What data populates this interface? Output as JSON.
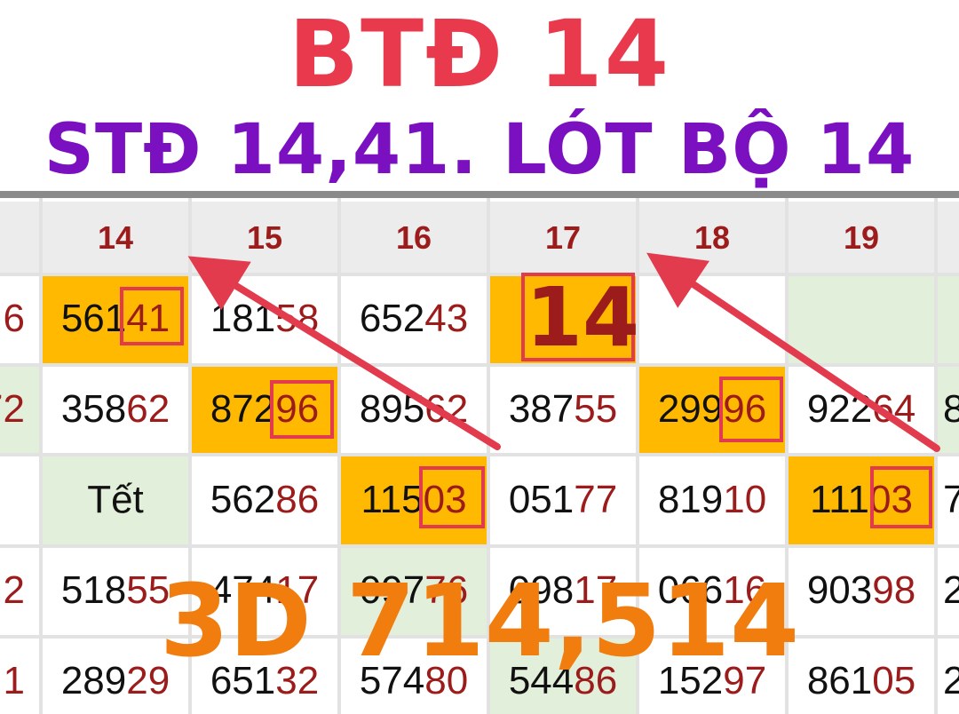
{
  "colors": {
    "title_red": "#e8394d",
    "title_purple": "#7a10c0",
    "digit_red": "#9c1c1c",
    "highlight_orange": "#ffba00",
    "holiday_green": "#e2efda",
    "header_bg": "#ececec",
    "box_red": "#e23b4e",
    "overlay_orange": "#f07d0d"
  },
  "title": {
    "line1": "BTĐ 14",
    "line2": "STĐ 14,41. LÓT BỘ 14"
  },
  "overlay": {
    "big_number": "14",
    "bottom_text": "3D 714,514"
  },
  "table": {
    "columns": [
      {
        "label": "",
        "left": 0,
        "width": 46,
        "partial": true
      },
      {
        "label": "14",
        "left": 46,
        "width": 168
      },
      {
        "label": "15",
        "left": 214,
        "width": 168
      },
      {
        "label": "16",
        "left": 382,
        "width": 168
      },
      {
        "label": "17",
        "left": 550,
        "width": 168
      },
      {
        "label": "18",
        "left": 718,
        "width": 168
      },
      {
        "label": "19",
        "left": 886,
        "width": 168
      },
      {
        "label": "",
        "left": 1054,
        "width": 40,
        "partial": true
      }
    ],
    "rows": [
      [
        {
          "pre": "",
          "suf": "6",
          "partial": true
        },
        {
          "pre": "561",
          "suf": "41",
          "bg": "orange"
        },
        {
          "pre": "181",
          "suf": "58"
        },
        {
          "pre": "652",
          "suf": "43"
        },
        {
          "pre": "",
          "suf": "",
          "bg": "orange"
        },
        {
          "pre": "",
          "suf": ""
        },
        {
          "pre": "",
          "suf": "",
          "bg": "green"
        },
        {
          "pre": "",
          "suf": "",
          "bg": "green",
          "partial": true
        }
      ],
      [
        {
          "pre": "",
          "suf": "72",
          "bg": "green",
          "partial": true
        },
        {
          "pre": "358",
          "suf": "62"
        },
        {
          "pre": "872",
          "suf": "96",
          "bg": "orange"
        },
        {
          "pre": "895",
          "suf": "62"
        },
        {
          "pre": "387",
          "suf": "55"
        },
        {
          "pre": "299",
          "suf": "96",
          "bg": "orange"
        },
        {
          "pre": "922",
          "suf": "64"
        },
        {
          "pre": "8",
          "suf": "",
          "bg": "green",
          "partial": true
        }
      ],
      [
        {
          "pre": "",
          "suf": "",
          "partial": true
        },
        {
          "pre": "Tết",
          "suf": "",
          "bg": "green"
        },
        {
          "pre": "562",
          "suf": "86"
        },
        {
          "pre": "115",
          "suf": "03",
          "bg": "orange"
        },
        {
          "pre": "051",
          "suf": "77"
        },
        {
          "pre": "819",
          "suf": "10"
        },
        {
          "pre": "111",
          "suf": "03",
          "bg": "orange"
        },
        {
          "pre": "7",
          "suf": "",
          "partial": true
        }
      ],
      [
        {
          "pre": "",
          "suf": "2",
          "partial": true
        },
        {
          "pre": "518",
          "suf": "55"
        },
        {
          "pre": "474",
          "suf": "17"
        },
        {
          "pre": "097",
          "suf": "76",
          "bg": "green"
        },
        {
          "pre": "098",
          "suf": "17"
        },
        {
          "pre": "066",
          "suf": "16"
        },
        {
          "pre": "903",
          "suf": "98"
        },
        {
          "pre": "2",
          "suf": "",
          "partial": true
        }
      ],
      [
        {
          "pre": "",
          "suf": "1",
          "partial": true
        },
        {
          "pre": "289",
          "suf": "29"
        },
        {
          "pre": "651",
          "suf": "32"
        },
        {
          "pre": "574",
          "suf": "80"
        },
        {
          "pre": "544",
          "suf": "86",
          "bg": "green"
        },
        {
          "pre": "152",
          "suf": "97"
        },
        {
          "pre": "861",
          "suf": "05"
        },
        {
          "pre": "2",
          "suf": "",
          "partial": true
        }
      ]
    ]
  }
}
